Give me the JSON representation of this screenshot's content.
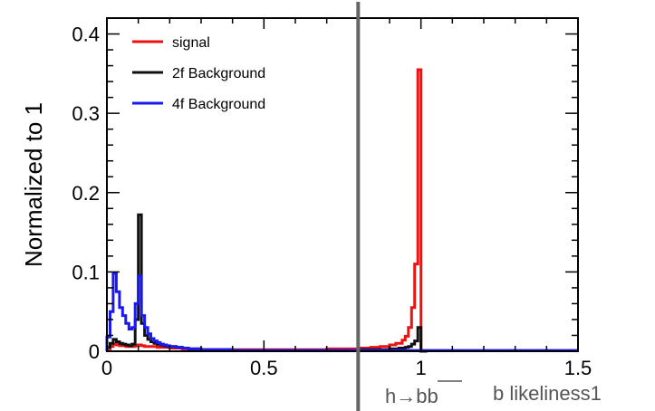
{
  "chart_data": {
    "type": "line",
    "ylabel": "Normalized to 1",
    "xlabel_left": "h→bb",
    "xlabel_right": "b likeliness1",
    "xlim": [
      0,
      1.5
    ],
    "ylim": [
      0,
      0.42
    ],
    "x_ticks": [
      {
        "value": 0,
        "label": "0"
      },
      {
        "value": 0.5,
        "label": "0.5"
      },
      {
        "value": 1,
        "label": "1"
      },
      {
        "value": 1.5,
        "label": "1.5"
      }
    ],
    "y_ticks": [
      {
        "value": 0,
        "label": "0"
      },
      {
        "value": 0.1,
        "label": "0.1"
      },
      {
        "value": 0.2,
        "label": "0.2"
      },
      {
        "value": 0.3,
        "label": "0.3"
      },
      {
        "value": 0.4,
        "label": "0.4"
      }
    ],
    "cut_line_x": 0.8,
    "legend_position": "top-left",
    "bin_width": 0.01,
    "series": [
      {
        "name": "signal",
        "color": "#ee1111",
        "bins": [
          {
            "x": 0.0,
            "y": 0.003
          },
          {
            "x": 0.01,
            "y": 0.006
          },
          {
            "x": 0.02,
            "y": 0.009
          },
          {
            "x": 0.03,
            "y": 0.008
          },
          {
            "x": 0.04,
            "y": 0.007
          },
          {
            "x": 0.05,
            "y": 0.007
          },
          {
            "x": 0.06,
            "y": 0.006
          },
          {
            "x": 0.07,
            "y": 0.006
          },
          {
            "x": 0.08,
            "y": 0.006
          },
          {
            "x": 0.09,
            "y": 0.007
          },
          {
            "x": 0.1,
            "y": 0.008
          },
          {
            "x": 0.11,
            "y": 0.007
          },
          {
            "x": 0.12,
            "y": 0.006
          },
          {
            "x": 0.13,
            "y": 0.006
          },
          {
            "x": 0.14,
            "y": 0.006
          },
          {
            "x": 0.15,
            "y": 0.006
          },
          {
            "x": 0.16,
            "y": 0.005
          },
          {
            "x": 0.17,
            "y": 0.005
          },
          {
            "x": 0.18,
            "y": 0.005
          },
          {
            "x": 0.19,
            "y": 0.005
          },
          {
            "x": 0.2,
            "y": 0.004
          },
          {
            "x": 0.22,
            "y": 0.004
          },
          {
            "x": 0.24,
            "y": 0.003
          },
          {
            "x": 0.26,
            "y": 0.003
          },
          {
            "x": 0.28,
            "y": 0.003
          },
          {
            "x": 0.3,
            "y": 0.002
          },
          {
            "x": 0.35,
            "y": 0.002
          },
          {
            "x": 0.4,
            "y": 0.002
          },
          {
            "x": 0.45,
            "y": 0.002
          },
          {
            "x": 0.5,
            "y": 0.002
          },
          {
            "x": 0.55,
            "y": 0.002
          },
          {
            "x": 0.6,
            "y": 0.002
          },
          {
            "x": 0.65,
            "y": 0.002
          },
          {
            "x": 0.7,
            "y": 0.003
          },
          {
            "x": 0.75,
            "y": 0.003
          },
          {
            "x": 0.8,
            "y": 0.004
          },
          {
            "x": 0.84,
            "y": 0.005
          },
          {
            "x": 0.87,
            "y": 0.006
          },
          {
            "x": 0.9,
            "y": 0.008
          },
          {
            "x": 0.92,
            "y": 0.01
          },
          {
            "x": 0.94,
            "y": 0.014
          },
          {
            "x": 0.95,
            "y": 0.019
          },
          {
            "x": 0.96,
            "y": 0.03
          },
          {
            "x": 0.97,
            "y": 0.055
          },
          {
            "x": 0.98,
            "y": 0.11
          },
          {
            "x": 0.99,
            "y": 0.355
          },
          {
            "x": 1.0,
            "y": 0.0
          },
          {
            "x": 1.01,
            "y": 0.0
          }
        ]
      },
      {
        "name": "2f Background",
        "color": "#111111",
        "bins": [
          {
            "x": 0.0,
            "y": 0.005
          },
          {
            "x": 0.01,
            "y": 0.01
          },
          {
            "x": 0.02,
            "y": 0.015
          },
          {
            "x": 0.03,
            "y": 0.012
          },
          {
            "x": 0.04,
            "y": 0.01
          },
          {
            "x": 0.05,
            "y": 0.009
          },
          {
            "x": 0.06,
            "y": 0.008
          },
          {
            "x": 0.07,
            "y": 0.007
          },
          {
            "x": 0.08,
            "y": 0.009
          },
          {
            "x": 0.09,
            "y": 0.04
          },
          {
            "x": 0.1,
            "y": 0.172
          },
          {
            "x": 0.11,
            "y": 0.035
          },
          {
            "x": 0.12,
            "y": 0.02
          },
          {
            "x": 0.13,
            "y": 0.015
          },
          {
            "x": 0.14,
            "y": 0.012
          },
          {
            "x": 0.15,
            "y": 0.01
          },
          {
            "x": 0.16,
            "y": 0.009
          },
          {
            "x": 0.17,
            "y": 0.008
          },
          {
            "x": 0.18,
            "y": 0.007
          },
          {
            "x": 0.19,
            "y": 0.006
          },
          {
            "x": 0.2,
            "y": 0.006
          },
          {
            "x": 0.22,
            "y": 0.005
          },
          {
            "x": 0.24,
            "y": 0.004
          },
          {
            "x": 0.26,
            "y": 0.003
          },
          {
            "x": 0.28,
            "y": 0.003
          },
          {
            "x": 0.3,
            "y": 0.002
          },
          {
            "x": 0.35,
            "y": 0.002
          },
          {
            "x": 0.4,
            "y": 0.001
          },
          {
            "x": 0.5,
            "y": 0.001
          },
          {
            "x": 0.6,
            "y": 0.001
          },
          {
            "x": 0.7,
            "y": 0.001
          },
          {
            "x": 0.8,
            "y": 0.002
          },
          {
            "x": 0.85,
            "y": 0.002
          },
          {
            "x": 0.9,
            "y": 0.003
          },
          {
            "x": 0.93,
            "y": 0.004
          },
          {
            "x": 0.95,
            "y": 0.005
          },
          {
            "x": 0.96,
            "y": 0.006
          },
          {
            "x": 0.97,
            "y": 0.009
          },
          {
            "x": 0.98,
            "y": 0.013
          },
          {
            "x": 0.99,
            "y": 0.03
          },
          {
            "x": 1.0,
            "y": 0.0
          },
          {
            "x": 1.01,
            "y": 0.0
          }
        ]
      },
      {
        "name": "4f Background",
        "color": "#1a1aee",
        "bins": [
          {
            "x": 0.0,
            "y": 0.018
          },
          {
            "x": 0.01,
            "y": 0.05
          },
          {
            "x": 0.02,
            "y": 0.098
          },
          {
            "x": 0.03,
            "y": 0.075
          },
          {
            "x": 0.04,
            "y": 0.055
          },
          {
            "x": 0.05,
            "y": 0.045
          },
          {
            "x": 0.06,
            "y": 0.035
          },
          {
            "x": 0.07,
            "y": 0.028
          },
          {
            "x": 0.08,
            "y": 0.03
          },
          {
            "x": 0.09,
            "y": 0.06
          },
          {
            "x": 0.1,
            "y": 0.095
          },
          {
            "x": 0.11,
            "y": 0.045
          },
          {
            "x": 0.12,
            "y": 0.03
          },
          {
            "x": 0.13,
            "y": 0.022
          },
          {
            "x": 0.14,
            "y": 0.016
          },
          {
            "x": 0.15,
            "y": 0.013
          },
          {
            "x": 0.16,
            "y": 0.011
          },
          {
            "x": 0.17,
            "y": 0.009
          },
          {
            "x": 0.18,
            "y": 0.008
          },
          {
            "x": 0.19,
            "y": 0.007
          },
          {
            "x": 0.2,
            "y": 0.006
          },
          {
            "x": 0.22,
            "y": 0.005
          },
          {
            "x": 0.24,
            "y": 0.004
          },
          {
            "x": 0.26,
            "y": 0.003
          },
          {
            "x": 0.28,
            "y": 0.003
          },
          {
            "x": 0.3,
            "y": 0.002
          },
          {
            "x": 0.35,
            "y": 0.002
          },
          {
            "x": 0.4,
            "y": 0.001
          },
          {
            "x": 0.5,
            "y": 0.001
          },
          {
            "x": 0.6,
            "y": 0.001
          },
          {
            "x": 0.7,
            "y": 0.001
          },
          {
            "x": 0.8,
            "y": 0.001
          },
          {
            "x": 0.9,
            "y": 0.001
          },
          {
            "x": 1.0,
            "y": 0.001
          },
          {
            "x": 1.1,
            "y": 0.001
          },
          {
            "x": 1.2,
            "y": 0.001
          },
          {
            "x": 1.3,
            "y": 0.001
          },
          {
            "x": 1.4,
            "y": 0.001
          },
          {
            "x": 1.49,
            "y": 0.001
          }
        ]
      }
    ]
  }
}
